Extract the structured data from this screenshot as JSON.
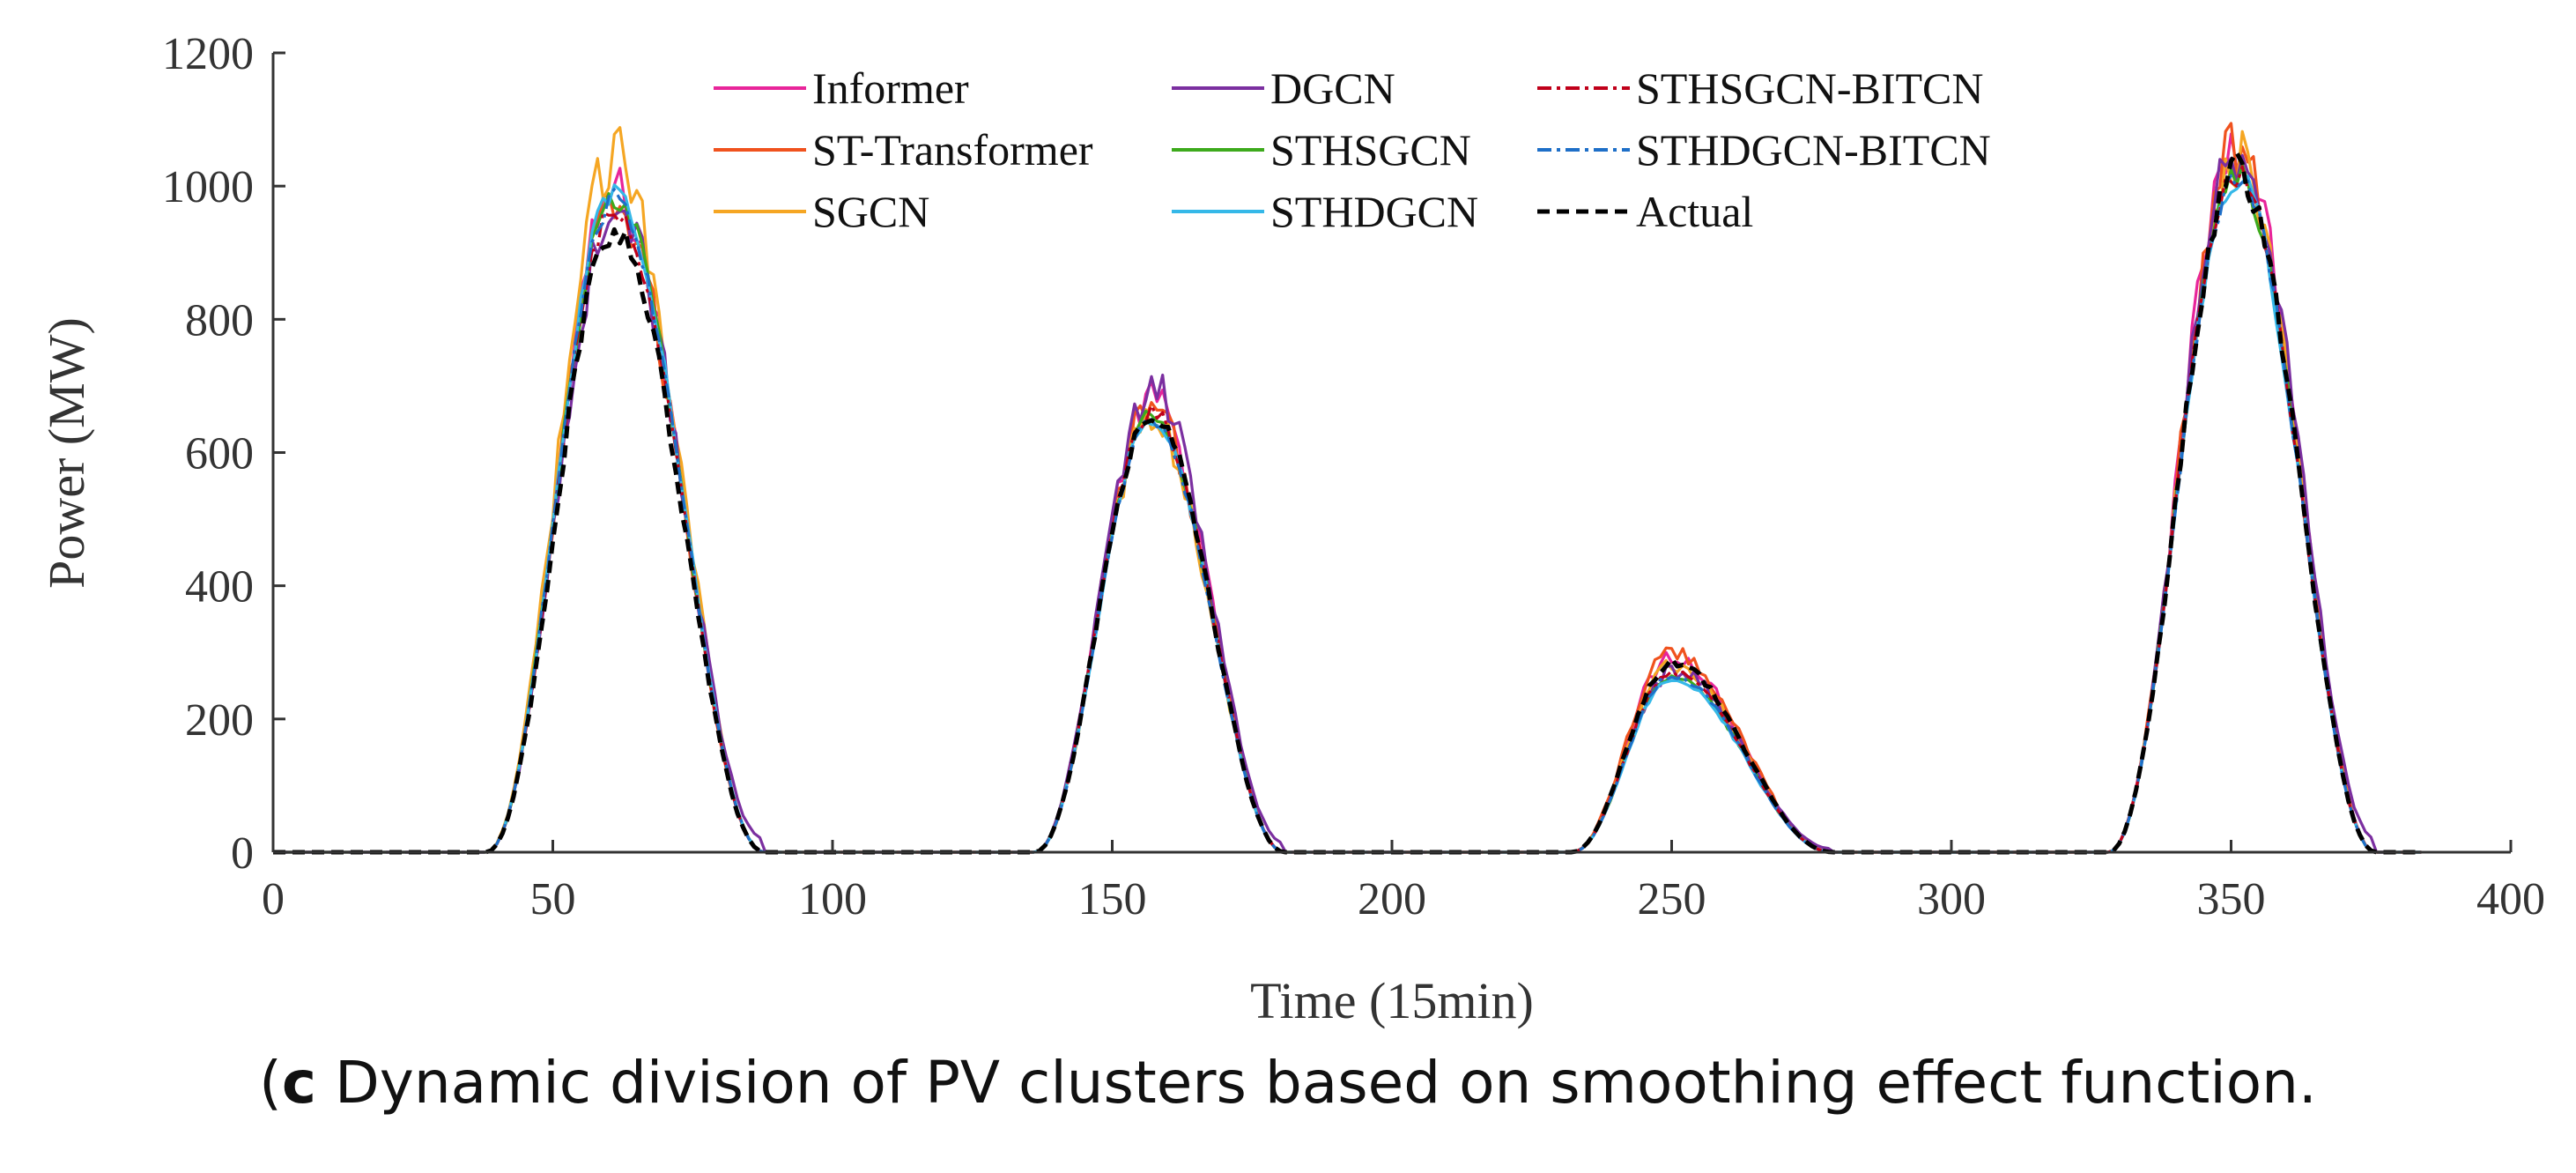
{
  "chart_data": {
    "type": "line",
    "title": "",
    "xlabel": "Time (15min)",
    "ylabel": "Power (MW)",
    "xlim": [
      0,
      400
    ],
    "ylim": [
      0,
      1200
    ],
    "xticks": [
      0,
      50,
      100,
      150,
      200,
      250,
      300,
      350,
      400
    ],
    "yticks": [
      0,
      200,
      400,
      600,
      800,
      1000,
      1200
    ],
    "grid": false,
    "legend_position": "top-center",
    "peaks": [
      {
        "start": 38,
        "center": 61,
        "end": 88,
        "actual_peak": 935
      },
      {
        "start": 136,
        "center": 157,
        "end": 181,
        "actual_peak": 660
      },
      {
        "start": 232,
        "center": 250,
        "end": 279,
        "actual_peak": 285
      },
      {
        "start": 328,
        "center": 351,
        "end": 376,
        "actual_peak": 1025
      }
    ],
    "series": [
      {
        "name": "Informer",
        "color": "#E8259A",
        "style": "solid",
        "peak_values": [
          990,
          680,
          295,
          1070
        ]
      },
      {
        "name": "ST-Transformer",
        "color": "#F0521E",
        "style": "solid",
        "peak_values": [
          975,
          670,
          300,
          1060
        ]
      },
      {
        "name": "SGCN",
        "color": "#F5A623",
        "style": "solid",
        "peak_values": [
          1045,
          650,
          280,
          1040
        ]
      },
      {
        "name": "DGCN",
        "color": "#7B2FA0",
        "style": "solid",
        "peak_values": [
          960,
          690,
          270,
          1050
        ]
      },
      {
        "name": "STHSGCN",
        "color": "#3DAA1C",
        "style": "solid",
        "peak_values": [
          985,
          655,
          265,
          1020
        ]
      },
      {
        "name": "STHDGCN",
        "color": "#35B8E8",
        "style": "solid",
        "peak_values": [
          995,
          650,
          262,
          1015
        ]
      },
      {
        "name": "STHSGCN-BITCN",
        "color": "#C0001A",
        "style": "dashdot",
        "peak_values": [
          965,
          662,
          270,
          1020
        ]
      },
      {
        "name": "STHDGCN-BITCN",
        "color": "#1E6FC8",
        "style": "dashdot",
        "peak_values": [
          980,
          650,
          265,
          1018
        ]
      },
      {
        "name": "Actual",
        "color": "#000000",
        "style": "dashed",
        "peak_values": [
          935,
          660,
          285,
          1025
        ]
      }
    ]
  },
  "caption": {
    "label": "c",
    "text": " Dynamic division of PV clusters based on smoothing effect function."
  }
}
